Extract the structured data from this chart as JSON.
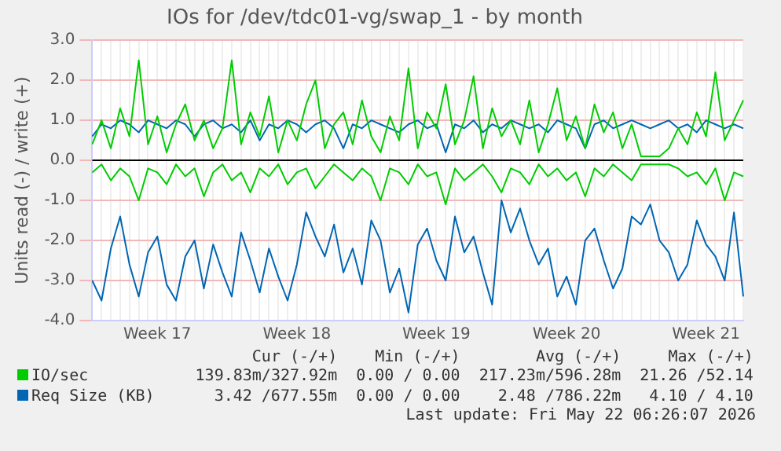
{
  "chart_data": {
    "type": "line",
    "title": "IOs for /dev/tdc01-vg/swap_1 - by month",
    "ylabel": "Units read (-) / write (+)",
    "categories": [
      null,
      null,
      null,
      null,
      null,
      null,
      null,
      "Week 17",
      null,
      null,
      null,
      null,
      null,
      null,
      null,
      null,
      null,
      null,
      null,
      null,
      null,
      null,
      "Week 18",
      null,
      null,
      null,
      null,
      null,
      null,
      null,
      null,
      null,
      null,
      null,
      null,
      null,
      null,
      "Week 19",
      null,
      null,
      null,
      null,
      null,
      null,
      null,
      null,
      null,
      null,
      null,
      null,
      null,
      "Week 20",
      null,
      null,
      null,
      null,
      null,
      null,
      null,
      null,
      null,
      null,
      null,
      null,
      null,
      null,
      "Week 21",
      null,
      null,
      null,
      null
    ],
    "series": [
      {
        "color": "#00cc00",
        "values": [
          -0.3,
          -0.1,
          -0.5,
          -0.2,
          -0.4,
          -1.0,
          -0.2,
          -0.3,
          -0.6,
          -0.1,
          -0.4,
          -0.2,
          -0.9,
          -0.3,
          -0.1,
          -0.5,
          -0.3,
          -0.8,
          -0.2,
          -0.4,
          -0.1,
          -0.6,
          -0.3,
          -0.2,
          -0.7,
          -0.4,
          -0.1,
          -0.3,
          -0.5,
          -0.2,
          -0.4,
          -1.0,
          -0.2,
          -0.3,
          -0.6,
          -0.1,
          -0.4,
          -0.3,
          -1.1,
          -0.2,
          -0.5,
          -0.3,
          -0.1,
          -0.4,
          -0.8,
          -0.2,
          -0.3,
          -0.6,
          -0.1,
          -0.4,
          -0.2,
          -0.5,
          -0.3,
          -0.9,
          -0.2,
          -0.4,
          -0.1,
          -0.3,
          -0.5,
          -0.1,
          -0.1,
          -0.1,
          -0.1,
          -0.2,
          -0.4,
          -0.3,
          -0.6,
          -0.2,
          -1.0,
          -0.3,
          -0.4
        ]
      },
      {
        "name": "IO/sec",
        "color": "#00cc00",
        "values": [
          0.4,
          1.0,
          0.3,
          1.3,
          0.6,
          2.5,
          0.4,
          1.1,
          0.2,
          0.9,
          1.4,
          0.5,
          1.0,
          0.3,
          0.8,
          2.5,
          0.4,
          1.2,
          0.6,
          1.6,
          0.2,
          1.0,
          0.5,
          1.4,
          2.0,
          0.3,
          0.9,
          1.2,
          0.4,
          1.5,
          0.6,
          0.2,
          1.1,
          0.5,
          2.3,
          0.3,
          1.2,
          0.8,
          1.9,
          0.4,
          1.0,
          2.1,
          0.3,
          1.3,
          0.6,
          1.0,
          0.4,
          1.5,
          0.2,
          0.9,
          1.8,
          0.5,
          1.1,
          0.3,
          1.4,
          0.7,
          1.2,
          0.3,
          0.9,
          0.1,
          0.1,
          0.1,
          0.3,
          0.8,
          0.4,
          1.2,
          0.6,
          2.2,
          0.5,
          1.0,
          1.5
        ]
      },
      {
        "color": "#0066b3",
        "values": [
          -3.0,
          -3.5,
          -2.2,
          -1.4,
          -2.6,
          -3.4,
          -2.3,
          -1.9,
          -3.1,
          -3.5,
          -2.4,
          -2.0,
          -3.2,
          -2.1,
          -2.8,
          -3.4,
          -1.8,
          -2.5,
          -3.3,
          -2.2,
          -2.9,
          -3.5,
          -2.6,
          -1.3,
          -1.9,
          -2.4,
          -1.6,
          -2.8,
          -2.2,
          -3.1,
          -1.5,
          -2.0,
          -3.3,
          -2.7,
          -3.8,
          -2.1,
          -1.7,
          -2.5,
          -3.0,
          -1.4,
          -2.3,
          -1.9,
          -2.8,
          -3.6,
          -1.0,
          -1.8,
          -1.2,
          -2.0,
          -2.6,
          -2.2,
          -3.4,
          -2.9,
          -3.6,
          -2.0,
          -1.7,
          -2.5,
          -3.2,
          -2.7,
          -1.4,
          -1.6,
          -1.1,
          -2.0,
          -2.3,
          -3.0,
          -2.6,
          -1.5,
          -2.1,
          -2.4,
          -3.0,
          -1.3,
          -3.4
        ]
      },
      {
        "name": "Req Size (KB)",
        "color": "#0066b3",
        "values": [
          0.6,
          0.9,
          0.8,
          1.0,
          0.9,
          0.7,
          1.0,
          0.9,
          0.8,
          1.0,
          0.9,
          0.6,
          0.9,
          1.0,
          0.8,
          0.9,
          0.7,
          1.0,
          0.5,
          0.9,
          0.8,
          1.0,
          0.9,
          0.7,
          0.9,
          1.0,
          0.8,
          0.3,
          0.9,
          0.8,
          1.0,
          0.9,
          0.8,
          0.7,
          0.9,
          1.0,
          0.8,
          0.9,
          0.2,
          0.9,
          0.8,
          1.0,
          0.7,
          0.9,
          0.8,
          1.0,
          0.9,
          0.8,
          0.9,
          0.7,
          1.0,
          0.9,
          0.8,
          0.3,
          0.9,
          1.0,
          0.8,
          0.9,
          1.0,
          0.9,
          0.8,
          0.9,
          1.0,
          0.8,
          0.9,
          0.7,
          1.0,
          0.9,
          0.8,
          0.9,
          0.8
        ]
      }
    ],
    "ylim": [
      -4,
      3
    ],
    "yticks": [
      {
        "value": -4,
        "label": "-4.0"
      },
      {
        "value": -3,
        "label": "-3.0"
      },
      {
        "value": -2,
        "label": "-2.0"
      },
      {
        "value": -1,
        "label": "-1.0"
      },
      {
        "value": 0,
        "label": "0.0"
      },
      {
        "value": 1,
        "label": "1.0"
      },
      {
        "value": 2,
        "label": "2.0"
      },
      {
        "value": 3,
        "label": "3.0"
      }
    ],
    "ref_lines": [
      {
        "axis": "y",
        "value": 0,
        "color": "#000000"
      }
    ],
    "grid": true,
    "legend": "bottom",
    "marker": "none",
    "line_style": "solid",
    "annotations": [
      "Cur (-/+)",
      "Min (-/+)",
      "Avg (-/+)",
      "Max (-/+)",
      "139.83m/327.92m",
      "0.00 / 0.00",
      "217.23m/596.28m",
      "21.26 /52.14",
      "3.42 /677.55m",
      "0.00 / 0.00",
      "2.48 /786.22m",
      "4.10 / 4.10",
      "Last update: Fri May 22 06:26:07 2026"
    ]
  }
}
